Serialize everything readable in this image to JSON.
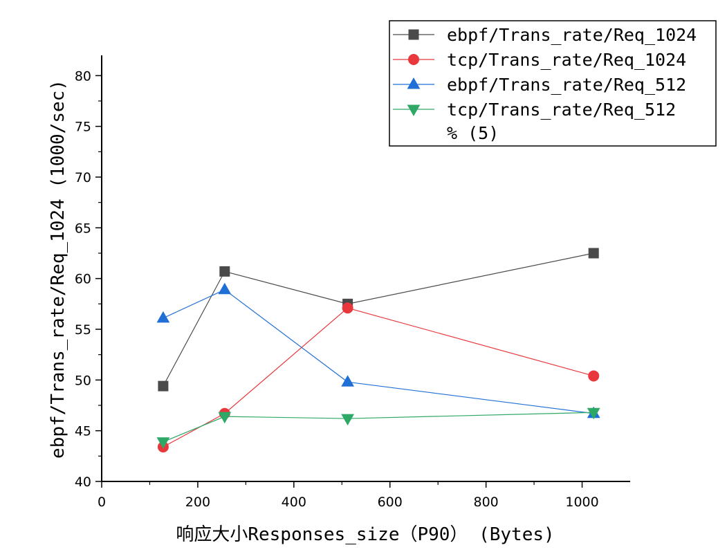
{
  "chart_data": {
    "type": "line",
    "title": "",
    "xlabel": "响应大小Responses_size（P90） (Bytes)",
    "ylabel": "ebpf/Trans_rate/Req_1024 (1000/sec)",
    "xlim": [
      0,
      1100
    ],
    "ylim": [
      40,
      82
    ],
    "x_ticks": [
      0,
      200,
      400,
      600,
      800,
      1000
    ],
    "y_ticks": [
      40,
      45,
      50,
      55,
      60,
      65,
      70,
      75,
      80
    ],
    "grid": false,
    "legend_position": "top-right",
    "x": [
      128,
      256,
      512,
      1024
    ],
    "series": [
      {
        "name": "ebpf/Trans_rate/Req_1024",
        "values": [
          49.4,
          60.7,
          57.5,
          62.5
        ],
        "color": "#4a4a4a",
        "marker": "square"
      },
      {
        "name": "tcp/Trans_rate/Req_1024",
        "values": [
          43.4,
          46.7,
          57.1,
          50.4
        ],
        "color": "#e8383d",
        "marker": "circle"
      },
      {
        "name": "ebpf/Trans_rate/Req_512",
        "values": [
          56.1,
          58.9,
          49.8,
          46.7
        ],
        "color": "#1f6fd6",
        "marker": "triangle-up"
      },
      {
        "name": "tcp/Trans_rate/Req_512",
        "values": [
          43.9,
          46.4,
          46.2,
          46.8
        ],
        "color": "#2ea866",
        "marker": "triangle-down"
      }
    ],
    "legend_extra": "% (5)"
  }
}
